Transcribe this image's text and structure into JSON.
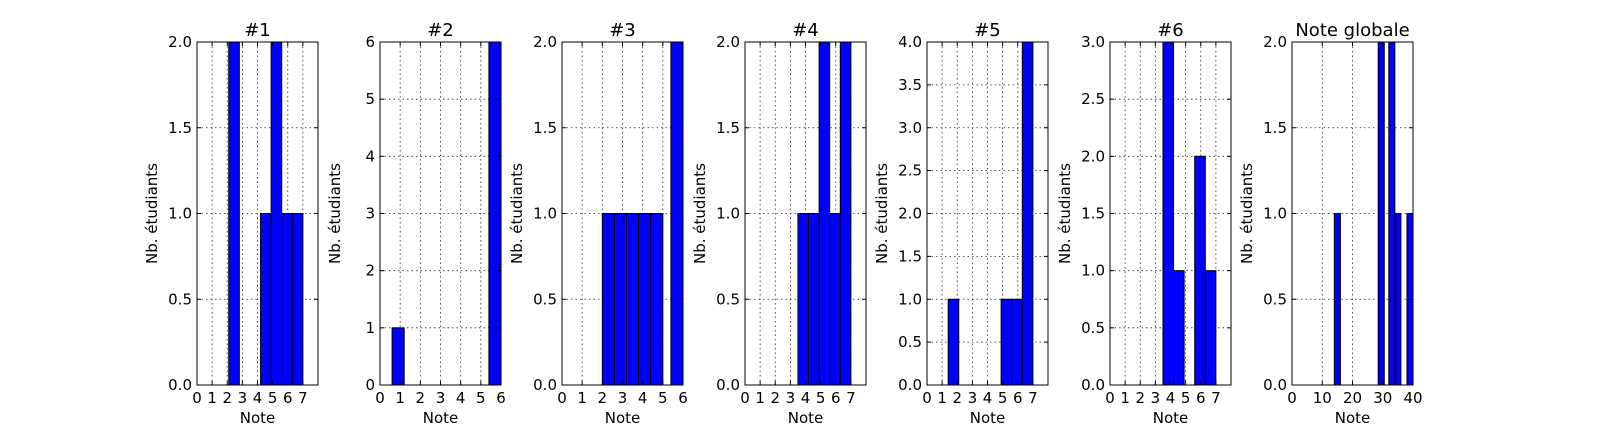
{
  "style": {
    "bar_color": "#0000ff",
    "edge_color": "#000000",
    "background": "#ffffff"
  },
  "chart_data": [
    {
      "type": "bar",
      "title": "#1",
      "xlabel": "Note",
      "ylabel": "Nb. étudiants",
      "xlim": [
        0,
        8
      ],
      "ylim": [
        0,
        2
      ],
      "xticks": [
        0,
        1,
        2,
        3,
        4,
        5,
        6,
        7
      ],
      "yticks": [
        "0.0",
        "0.5",
        "1.0",
        "1.5",
        "2.0"
      ],
      "grid": true,
      "bins": [
        {
          "x0": 2.1,
          "x1": 2.8,
          "value": 2
        },
        {
          "x0": 4.2,
          "x1": 4.9,
          "value": 1
        },
        {
          "x0": 4.9,
          "x1": 5.6,
          "value": 2
        },
        {
          "x0": 5.6,
          "x1": 6.3,
          "value": 1
        },
        {
          "x0": 6.3,
          "x1": 7.0,
          "value": 1
        }
      ]
    },
    {
      "type": "bar",
      "title": "#2",
      "xlabel": "Note",
      "ylabel": "Nb. étudiants",
      "xlim": [
        0,
        6
      ],
      "ylim": [
        0,
        6
      ],
      "xticks": [
        0,
        1,
        2,
        3,
        4,
        5,
        6
      ],
      "yticks": [
        "0",
        "1",
        "2",
        "3",
        "4",
        "5",
        "6"
      ],
      "grid": true,
      "bins": [
        {
          "x0": 0.6,
          "x1": 1.2,
          "value": 1
        },
        {
          "x0": 5.4,
          "x1": 6.0,
          "value": 6
        }
      ]
    },
    {
      "type": "bar",
      "title": "#3",
      "xlabel": "Note",
      "ylabel": "Nb. étudiants",
      "xlim": [
        0,
        6
      ],
      "ylim": [
        0,
        2
      ],
      "xticks": [
        0,
        1,
        2,
        3,
        4,
        5,
        6
      ],
      "yticks": [
        "0.0",
        "0.5",
        "1.0",
        "1.5",
        "2.0"
      ],
      "grid": true,
      "bins": [
        {
          "x0": 2.0,
          "x1": 2.6,
          "value": 1
        },
        {
          "x0": 2.6,
          "x1": 3.2,
          "value": 1
        },
        {
          "x0": 3.2,
          "x1": 3.8,
          "value": 1
        },
        {
          "x0": 3.8,
          "x1": 4.4,
          "value": 1
        },
        {
          "x0": 4.4,
          "x1": 5.0,
          "value": 1
        },
        {
          "x0": 5.4,
          "x1": 6.0,
          "value": 2
        }
      ]
    },
    {
      "type": "bar",
      "title": "#4",
      "xlabel": "Note",
      "ylabel": "Nb. étudiants",
      "xlim": [
        0,
        8
      ],
      "ylim": [
        0,
        2
      ],
      "xticks": [
        0,
        1,
        2,
        3,
        4,
        5,
        6,
        7
      ],
      "yticks": [
        "0.0",
        "0.5",
        "1.0",
        "1.5",
        "2.0"
      ],
      "grid": true,
      "bins": [
        {
          "x0": 3.5,
          "x1": 4.2,
          "value": 1
        },
        {
          "x0": 4.2,
          "x1": 4.9,
          "value": 1
        },
        {
          "x0": 4.9,
          "x1": 5.6,
          "value": 2
        },
        {
          "x0": 5.6,
          "x1": 6.3,
          "value": 1
        },
        {
          "x0": 6.3,
          "x1": 7.0,
          "value": 2
        }
      ]
    },
    {
      "type": "bar",
      "title": "#5",
      "xlabel": "Note",
      "ylabel": "Nb. étudiants",
      "xlim": [
        0,
        8
      ],
      "ylim": [
        0,
        4
      ],
      "xticks": [
        0,
        1,
        2,
        3,
        4,
        5,
        6,
        7
      ],
      "yticks": [
        "0.0",
        "0.5",
        "1.0",
        "1.5",
        "2.0",
        "2.5",
        "3.0",
        "3.5",
        "4.0"
      ],
      "grid": true,
      "bins": [
        {
          "x0": 1.4,
          "x1": 2.1,
          "value": 1
        },
        {
          "x0": 4.9,
          "x1": 5.6,
          "value": 1
        },
        {
          "x0": 5.6,
          "x1": 6.3,
          "value": 1
        },
        {
          "x0": 6.3,
          "x1": 7.0,
          "value": 4
        }
      ]
    },
    {
      "type": "bar",
      "title": "#6",
      "xlabel": "Note",
      "ylabel": "Nb. étudiants",
      "xlim": [
        0,
        8
      ],
      "ylim": [
        0,
        3
      ],
      "xticks": [
        0,
        1,
        2,
        3,
        4,
        5,
        6,
        7
      ],
      "yticks": [
        "0.0",
        "0.5",
        "1.0",
        "1.5",
        "2.0",
        "2.5",
        "3.0"
      ],
      "grid": true,
      "bins": [
        {
          "x0": 3.5,
          "x1": 4.2,
          "value": 3
        },
        {
          "x0": 4.2,
          "x1": 4.9,
          "value": 1
        },
        {
          "x0": 5.6,
          "x1": 6.3,
          "value": 2
        },
        {
          "x0": 6.3,
          "x1": 7.0,
          "value": 1
        }
      ]
    },
    {
      "type": "bar",
      "title": "Note globale",
      "xlabel": "Note",
      "ylabel": "Nb. étudiants",
      "xlim": [
        0,
        40
      ],
      "ylim": [
        0,
        2
      ],
      "xticks": [
        0,
        10,
        20,
        30,
        40
      ],
      "yticks": [
        "0.0",
        "0.5",
        "1.0",
        "1.5",
        "2.0"
      ],
      "grid": true,
      "bins": [
        {
          "x0": 14.0,
          "x1": 16.0,
          "value": 1
        },
        {
          "x0": 28.5,
          "x1": 30.5,
          "value": 2
        },
        {
          "x0": 32.0,
          "x1": 34.0,
          "value": 2
        },
        {
          "x0": 34.0,
          "x1": 36.0,
          "value": 1
        },
        {
          "x0": 38.0,
          "x1": 40.0,
          "value": 1
        }
      ]
    }
  ]
}
